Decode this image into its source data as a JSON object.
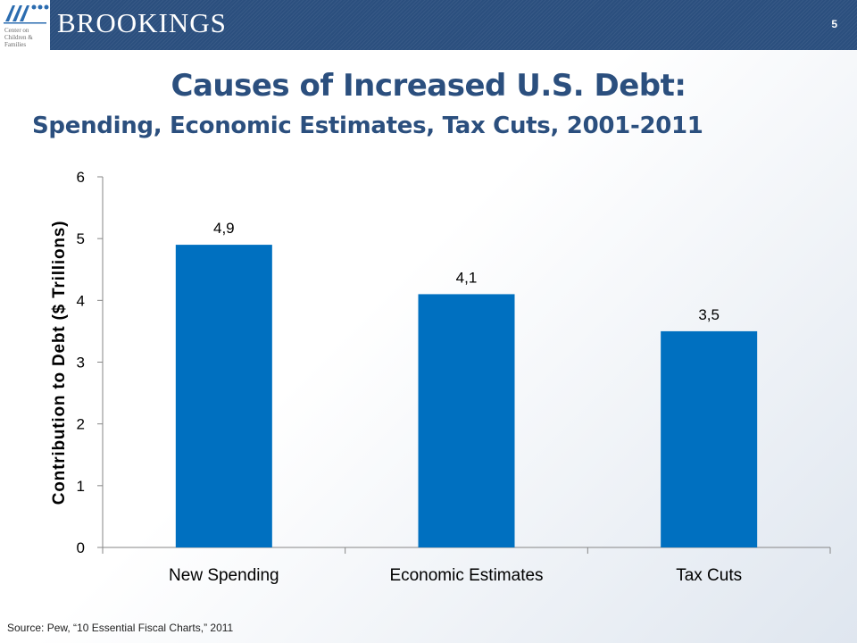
{
  "header": {
    "org_lines": [
      "Center on",
      "Children &",
      "Families"
    ],
    "brand": "BROOKINGS",
    "page_number": "5"
  },
  "title": "Causes of Increased U.S. Debt:",
  "subtitle": "Spending, Economic Estimates, Tax Cuts, 2001-2011",
  "source": "Source: Pew, “10 Essential Fiscal Charts,” 2011",
  "colors": {
    "bar": "#0070c0",
    "title": "#2b4f7e",
    "header": "#2b4f7e"
  },
  "chart_data": {
    "type": "bar",
    "categories": [
      "New Spending",
      "Economic Estimates",
      "Tax Cuts"
    ],
    "values": [
      4.9,
      4.1,
      3.5
    ],
    "data_labels": [
      "4,9",
      "4,1",
      "3,5"
    ],
    "ylabel": "Contribution to Debt ($ Trillions)",
    "ylim": [
      0,
      6
    ],
    "yticks": [
      0,
      1,
      2,
      3,
      4,
      5,
      6
    ],
    "grid": false
  }
}
